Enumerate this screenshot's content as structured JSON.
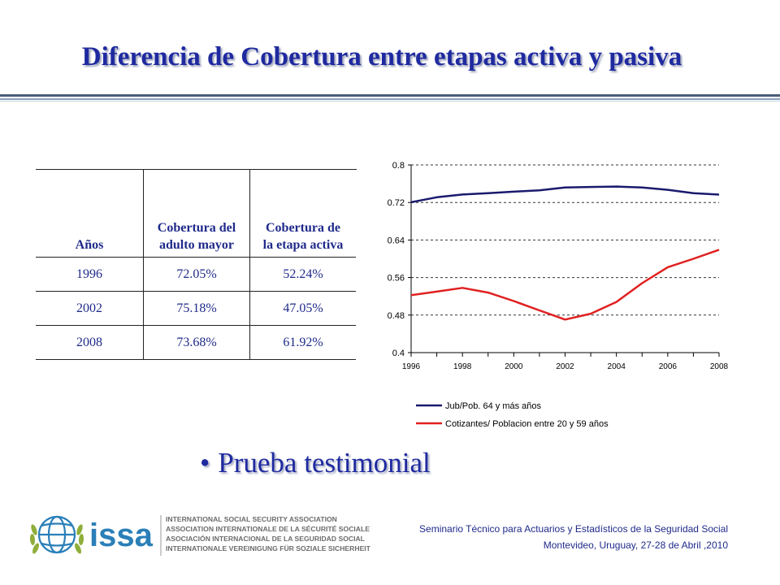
{
  "title": "Diferencia  de Cobertura entre etapas activa y pasiva",
  "table": {
    "headers": [
      "Años",
      "Cobertura del adulto mayor",
      "Cobertura de la etapa activa"
    ],
    "rows": [
      [
        "1996",
        "72.05%",
        "52.24%"
      ],
      [
        "2002",
        "75.18%",
        "47.05%"
      ],
      [
        "2008",
        "73.68%",
        "61.92%"
      ]
    ]
  },
  "chart_data": {
    "type": "line",
    "title": "",
    "xlabel": "",
    "ylabel": "",
    "xlim": [
      1996,
      2008
    ],
    "ylim": [
      0.4,
      0.8
    ],
    "x_ticks": [
      "1996",
      "1998",
      "2000",
      "2002",
      "2004",
      "2006",
      "2008"
    ],
    "y_ticks": [
      "0.8",
      "0.72",
      "0.64",
      "0.56",
      "0.48",
      "0.4"
    ],
    "grid": "horizontal dashed",
    "legend_placement": "bottom",
    "series": [
      {
        "name": "Jub/Pob. 64 y más años",
        "color": "#1a1a6e",
        "x": [
          1996,
          1997,
          1998,
          1999,
          2000,
          2001,
          2002,
          2003,
          2004,
          2005,
          2006,
          2007,
          2008
        ],
        "y": [
          0.7205,
          0.731,
          0.737,
          0.74,
          0.743,
          0.746,
          0.7518,
          0.753,
          0.754,
          0.752,
          0.747,
          0.74,
          0.7368
        ]
      },
      {
        "name": "Cotizantes/ Poblacion entre 20 y 59 años",
        "color": "#e02020",
        "x": [
          1996,
          1997,
          1998,
          1999,
          2000,
          2001,
          2002,
          2003,
          2004,
          2005,
          2006,
          2007,
          2008
        ],
        "y": [
          0.5224,
          0.53,
          0.538,
          0.528,
          0.51,
          0.49,
          0.4705,
          0.483,
          0.508,
          0.548,
          0.582,
          0.6,
          0.6192
        ]
      }
    ]
  },
  "bullet": "Prueba testimonial",
  "logo": {
    "wordmark": "issa",
    "lines": [
      "INTERNATIONAL SOCIAL SECURITY ASSOCIATION",
      "ASSOCIATION INTERNATIONALE DE LA SÉCURITÉ SOCIALE",
      "ASOCIACIÓN INTERNACIONAL DE LA SEGURIDAD SOCIAL",
      "INTERNATIONALE VEREINIGUNG FÜR SOZIALE SICHERHEIT"
    ]
  },
  "footer": {
    "line1": "Seminario Técnico para Actuarios y Estadísticos de la Seguridad Social",
    "line2": "Montevideo, Uruguay, 27-28 de Abril ,2010"
  },
  "colors": {
    "title": "#1f2aa0",
    "text": "#1f2a8a"
  }
}
